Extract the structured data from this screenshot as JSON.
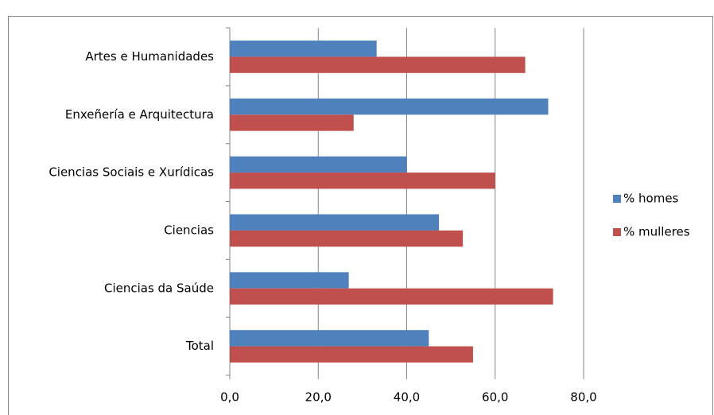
{
  "chart_data": {
    "type": "bar",
    "orientation": "horizontal",
    "categories": [
      "Artes e Humanidades",
      "Enxeñería e Arquitectura",
      "Ciencias Sociais e Xurídicas",
      "Ciencias",
      "Ciencias da Saúde",
      "Total"
    ],
    "series": [
      {
        "name": "% homes",
        "color": "#4f81bd",
        "values": [
          33.2,
          72.0,
          40.0,
          47.3,
          26.9,
          45.0
        ]
      },
      {
        "name": "% mulleres",
        "color": "#c0504d",
        "values": [
          66.8,
          28.0,
          60.0,
          52.7,
          73.1,
          55.0
        ]
      }
    ],
    "xlim": [
      0,
      80
    ],
    "xticks": [
      {
        "value": 0,
        "label": "0,0"
      },
      {
        "value": 20,
        "label": "20,0"
      },
      {
        "value": 40,
        "label": "40,0"
      },
      {
        "value": 60,
        "label": "60,0"
      },
      {
        "value": 80,
        "label": "80,0"
      }
    ],
    "grid": true,
    "legend": "right"
  }
}
